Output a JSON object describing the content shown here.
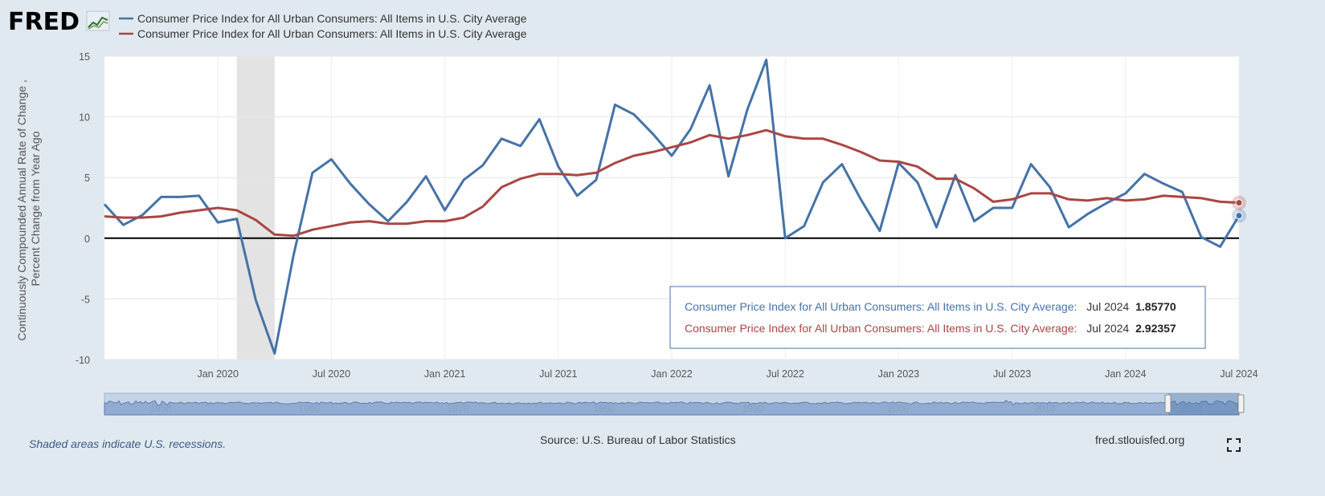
{
  "header": {
    "logo_text": "FRED",
    "logo_icon": "line-chart-icon"
  },
  "legend": [
    {
      "label": "Consumer Price Index for All Urban Consumers: All Items in U.S. City Average",
      "color": "#4572a7"
    },
    {
      "label": "Consumer Price Index for All Urban Consumers: All Items in U.S. City Average",
      "color": "#aa4643"
    }
  ],
  "footer": {
    "recession_note": "Shaded areas indicate U.S. recessions.",
    "source": "Source: U.S. Bureau of Labor Statistics",
    "site": "fred.stlouisfed.org",
    "fullscreen_icon": "fullscreen-icon"
  },
  "tooltip": {
    "rows": [
      {
        "label": "Consumer Price Index for All Urban Consumers: All Items in U.S. City Average:",
        "date": "Jul 2024",
        "value": "1.85770",
        "color": "#4572a7"
      },
      {
        "label": "Consumer Price Index for All Urban Consumers: All Items in U.S. City Average:",
        "date": "Jul 2024",
        "value": "2.92357",
        "color": "#aa4643"
      }
    ]
  },
  "navigator": {
    "labels": [
      "1950",
      "1960",
      "1970",
      "1980",
      "1990",
      "2000",
      "2010",
      "2020"
    ]
  },
  "chart_data": {
    "type": "line",
    "ylabel": "Continuously Compounded Annual Rate of Change , Percent Change from Year Ago",
    "ylim": [
      -10,
      15
    ],
    "yticks": [
      15,
      10,
      5,
      0,
      -5,
      -10
    ],
    "xlim": [
      "2019-07",
      "2024-07"
    ],
    "xticks": [
      "Jan 2020",
      "Jul 2020",
      "Jan 2021",
      "Jul 2021",
      "Jan 2022",
      "Jul 2022",
      "Jan 2023",
      "Jul 2023",
      "Jan 2024",
      "Jul 2024"
    ],
    "recession": [
      "2020-02",
      "2020-04"
    ],
    "grid": true,
    "legend_position": "top",
    "x": [
      "2019-07",
      "2019-08",
      "2019-09",
      "2019-10",
      "2019-11",
      "2019-12",
      "2020-01",
      "2020-02",
      "2020-03",
      "2020-04",
      "2020-05",
      "2020-06",
      "2020-07",
      "2020-08",
      "2020-09",
      "2020-10",
      "2020-11",
      "2020-12",
      "2021-01",
      "2021-02",
      "2021-03",
      "2021-04",
      "2021-05",
      "2021-06",
      "2021-07",
      "2021-08",
      "2021-09",
      "2021-10",
      "2021-11",
      "2021-12",
      "2022-01",
      "2022-02",
      "2022-03",
      "2022-04",
      "2022-05",
      "2022-06",
      "2022-07",
      "2022-08",
      "2022-09",
      "2022-10",
      "2022-11",
      "2022-12",
      "2023-01",
      "2023-02",
      "2023-03",
      "2023-04",
      "2023-05",
      "2023-06",
      "2023-07",
      "2023-08",
      "2023-09",
      "2023-10",
      "2023-11",
      "2023-12",
      "2024-01",
      "2024-02",
      "2024-03",
      "2024-04",
      "2024-05",
      "2024-06",
      "2024-07"
    ],
    "series": [
      {
        "name": "Consumer Price Index for All Urban Consumers: All Items in U.S. City Average",
        "color": "#4572a7",
        "values": [
          2.8,
          1.1,
          1.9,
          3.4,
          3.4,
          3.5,
          1.3,
          1.6,
          -5.1,
          -9.5,
          -1.4,
          5.4,
          6.5,
          4.5,
          2.8,
          1.4,
          3.0,
          5.1,
          2.3,
          4.8,
          6.0,
          8.2,
          7.6,
          9.8,
          5.9,
          3.5,
          4.8,
          11.0,
          10.2,
          8.6,
          6.8,
          9.0,
          12.6,
          5.1,
          10.6,
          14.7,
          0.0,
          1.0,
          4.6,
          6.1,
          3.2,
          0.6,
          6.2,
          4.6,
          0.9,
          5.2,
          1.4,
          2.5,
          2.5,
          6.1,
          4.2,
          0.9,
          2.0,
          2.9,
          3.7,
          5.3,
          4.5,
          3.8,
          0.1,
          -0.7,
          1.86
        ]
      },
      {
        "name": "Consumer Price Index for All Urban Consumers: All Items in U.S. City Average",
        "color": "#aa4643",
        "values": [
          1.8,
          1.7,
          1.7,
          1.8,
          2.1,
          2.3,
          2.5,
          2.3,
          1.5,
          0.3,
          0.2,
          0.7,
          1.0,
          1.3,
          1.4,
          1.2,
          1.2,
          1.4,
          1.4,
          1.7,
          2.6,
          4.2,
          4.9,
          5.3,
          5.3,
          5.2,
          5.4,
          6.2,
          6.8,
          7.1,
          7.5,
          7.9,
          8.5,
          8.2,
          8.5,
          8.9,
          8.4,
          8.2,
          8.2,
          7.7,
          7.1,
          6.4,
          6.3,
          5.9,
          4.9,
          4.9,
          4.1,
          3.0,
          3.2,
          3.7,
          3.7,
          3.2,
          3.1,
          3.3,
          3.1,
          3.2,
          3.5,
          3.4,
          3.3,
          3.0,
          2.92
        ]
      }
    ]
  }
}
